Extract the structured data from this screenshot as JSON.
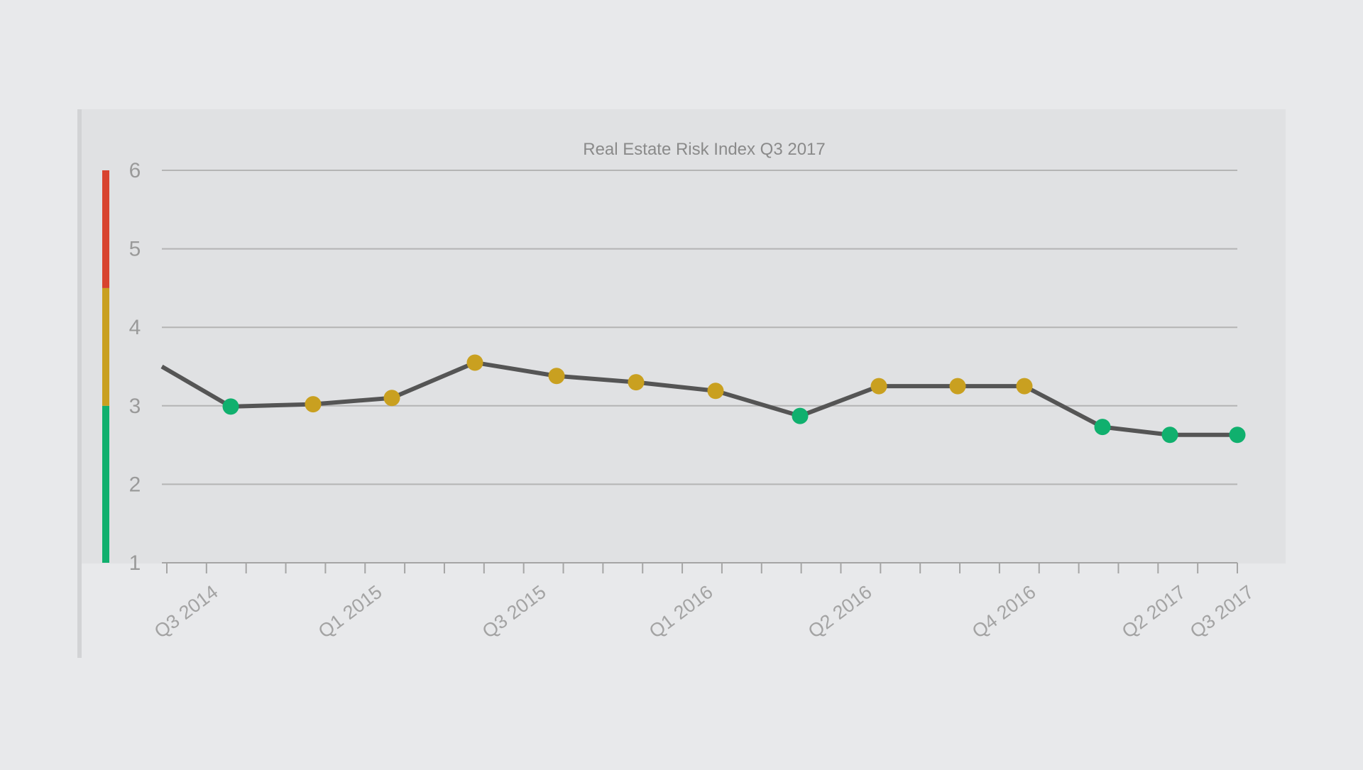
{
  "chart_data": {
    "type": "line",
    "title": "Real Estate Risk Index Q3 2017",
    "xlabel": "",
    "ylabel": "",
    "ylim": [
      1,
      6
    ],
    "y_ticks": [
      "1",
      "2",
      "3",
      "4",
      "5",
      "6"
    ],
    "x_labels": [
      "Q3 2014",
      "Q1 2015",
      "Q3 2015",
      "Q1 2016",
      "Q2 2016",
      "Q4 2016",
      "Q2 2017",
      "Q3 2017"
    ],
    "grid": true,
    "risk_bands": [
      {
        "from": 1,
        "to": 3,
        "color": "#10b06e"
      },
      {
        "from": 3,
        "to": 4.5,
        "color": "#c9a020"
      },
      {
        "from": 4.5,
        "to": 6,
        "color": "#d8432f"
      }
    ],
    "series": [
      {
        "name": "Risk Index",
        "line_color": "#555555",
        "entry_value": 3.5,
        "points": [
          {
            "value": 2.99,
            "status": "green"
          },
          {
            "value": 3.02,
            "status": "yellow"
          },
          {
            "value": 3.1,
            "status": "yellow"
          },
          {
            "value": 3.55,
            "status": "yellow"
          },
          {
            "value": 3.38,
            "status": "yellow"
          },
          {
            "value": 3.3,
            "status": "yellow"
          },
          {
            "value": 3.19,
            "status": "yellow"
          },
          {
            "value": 2.87,
            "status": "green"
          },
          {
            "value": 3.25,
            "status": "yellow"
          },
          {
            "value": 3.25,
            "status": "yellow"
          },
          {
            "value": 3.25,
            "status": "yellow"
          },
          {
            "value": 2.73,
            "status": "green"
          },
          {
            "value": 2.63,
            "status": "green"
          },
          {
            "value": 2.63,
            "status": "green"
          }
        ]
      }
    ],
    "status_colors": {
      "green": "#10b06e",
      "yellow": "#c9a020"
    }
  }
}
